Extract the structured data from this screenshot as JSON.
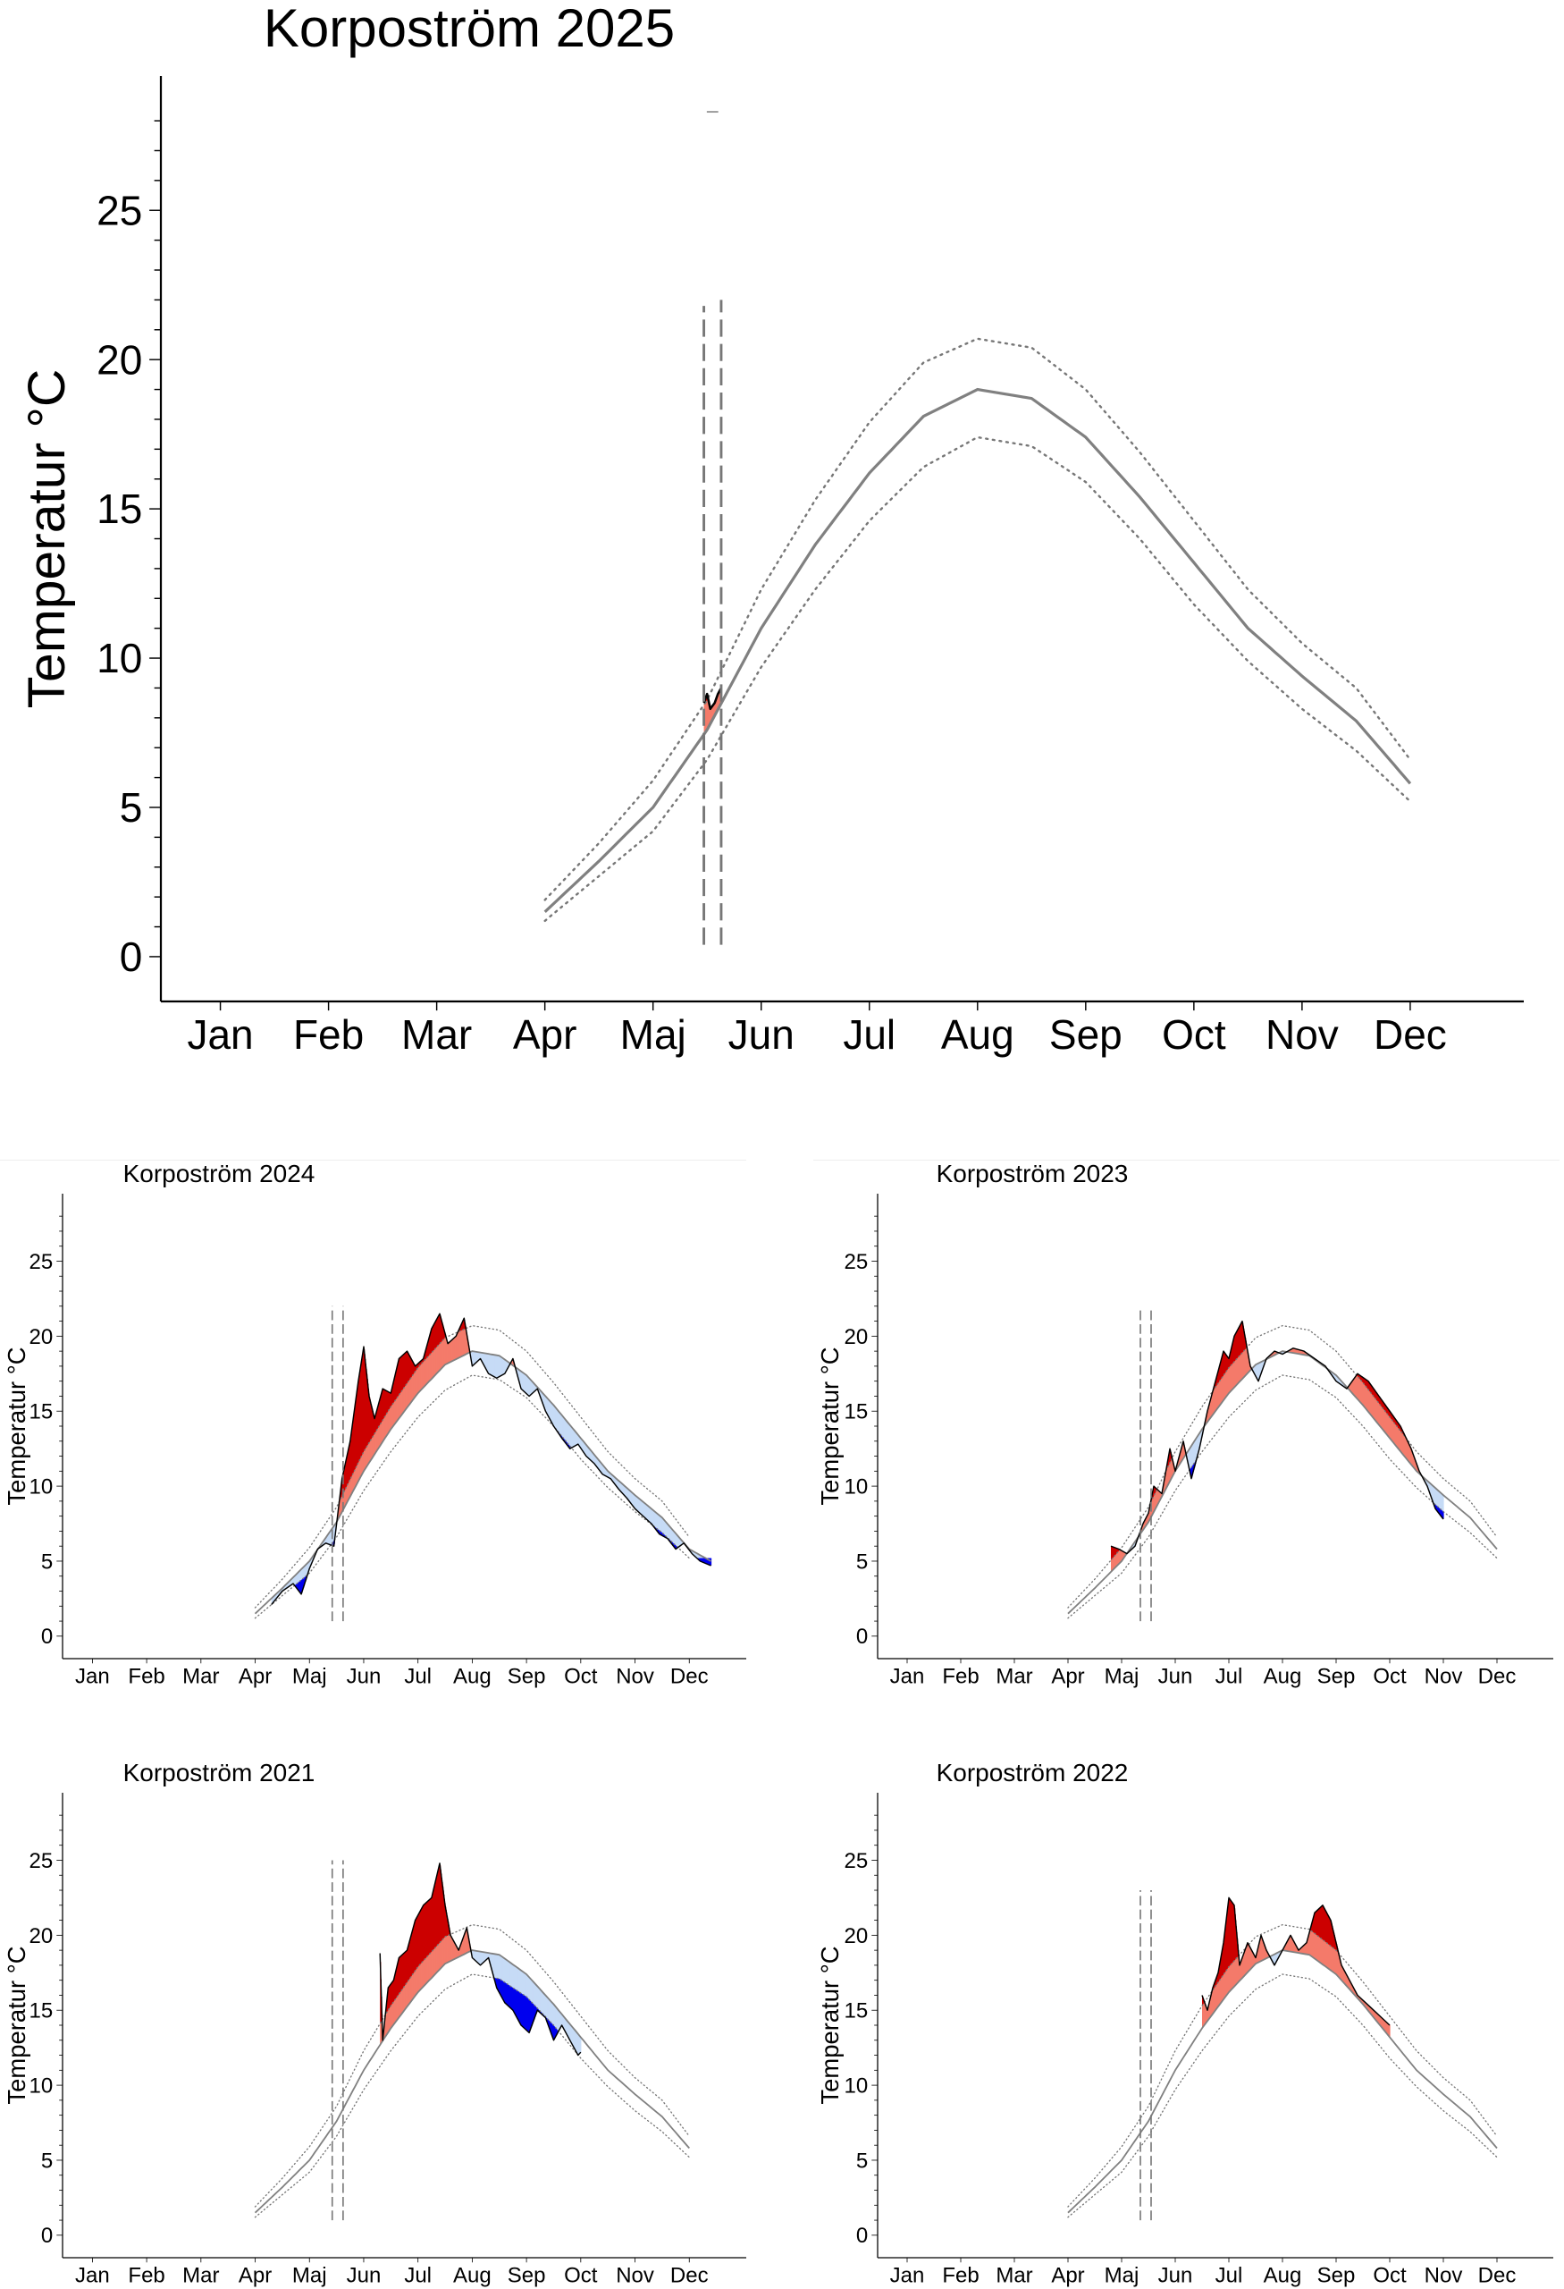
{
  "months": [
    "Jan",
    "Feb",
    "Mar",
    "Apr",
    "Maj",
    "Jun",
    "Jul",
    "Aug",
    "Sep",
    "Oct",
    "Nov",
    "Dec"
  ],
  "yticks": [
    0,
    5,
    10,
    15,
    20,
    25
  ],
  "colors": {
    "warm_strong": "#cc0000",
    "warm": "#f47b6a",
    "cold": "#c6dbf6",
    "cold_strong": "#0000ee",
    "mean": "#808080"
  },
  "chart_data": [
    {
      "type": "line",
      "title": "Korpoström 2025",
      "ylabel": "Temperatur °C",
      "ylim": [
        -1.5,
        29.5
      ],
      "x_unit": "month (1=Jan)",
      "climate_mean": {
        "x": [
          4.0,
          4.5,
          5.0,
          5.5,
          6.0,
          6.5,
          7.0,
          7.5,
          8.0,
          8.5,
          9.0,
          9.5,
          10.0,
          10.5,
          11.0,
          11.5,
          12.0
        ],
        "y": [
          1.5,
          3.2,
          5.0,
          7.6,
          11.0,
          13.8,
          16.2,
          18.1,
          19.0,
          18.7,
          17.4,
          15.4,
          13.2,
          11.0,
          9.4,
          7.9,
          5.8
        ]
      },
      "upper_band": {
        "x": [
          4.0,
          4.5,
          5.0,
          5.5,
          6.0,
          6.5,
          7.0,
          7.5,
          8.0,
          8.5,
          9.0,
          9.5,
          10.0,
          10.5,
          11.0,
          11.5,
          12.0
        ],
        "y": [
          1.9,
          3.8,
          5.9,
          8.6,
          12.3,
          15.3,
          17.9,
          19.9,
          20.7,
          20.4,
          19.0,
          16.9,
          14.6,
          12.3,
          10.5,
          9.0,
          6.6
        ]
      },
      "lower_band": {
        "x": [
          4.0,
          4.5,
          5.0,
          5.5,
          6.0,
          6.5,
          7.0,
          7.5,
          8.0,
          8.5,
          9.0,
          9.5,
          10.0,
          10.5,
          11.0,
          11.5,
          12.0
        ],
        "y": [
          1.2,
          2.7,
          4.2,
          6.6,
          9.7,
          12.3,
          14.6,
          16.4,
          17.4,
          17.1,
          15.9,
          14.0,
          11.8,
          9.9,
          8.3,
          6.9,
          5.2
        ]
      },
      "observed": {
        "x": [
          5.47,
          5.5,
          5.53,
          5.57,
          5.6,
          5.63
        ],
        "y": [
          8.5,
          8.8,
          8.3,
          8.5,
          8.8,
          9.0
        ]
      },
      "vlines": [
        5.47,
        5.63
      ],
      "vline_extent": [
        [
          0.4,
          21.8
        ],
        [
          0.4,
          22.0
        ]
      ],
      "stray_marks": [
        [
          5.55,
          28.3
        ]
      ]
    },
    {
      "type": "line",
      "title": "Korpoström 2024",
      "ylabel": "Temperatur °C",
      "ylim": [
        -1.5,
        29.5
      ],
      "climate_mean": {
        "x": [
          4.0,
          4.5,
          5.0,
          5.5,
          6.0,
          6.5,
          7.0,
          7.5,
          8.0,
          8.5,
          9.0,
          9.5,
          10.0,
          10.5,
          11.0,
          11.5,
          12.0,
          12.4
        ],
        "y": [
          1.5,
          3.2,
          5.0,
          7.6,
          11.0,
          13.8,
          16.2,
          18.1,
          19.0,
          18.7,
          17.4,
          15.4,
          13.2,
          11.0,
          9.4,
          7.9,
          5.8,
          5.0
        ]
      },
      "upper_band": {
        "x": [
          4.0,
          4.5,
          5.0,
          5.5,
          6.0,
          6.5,
          7.0,
          7.5,
          8.0,
          8.5,
          9.0,
          9.5,
          10.0,
          10.5,
          11.0,
          11.5,
          12.0
        ],
        "y": [
          1.9,
          3.8,
          5.9,
          8.6,
          12.3,
          15.3,
          17.9,
          19.9,
          20.7,
          20.4,
          19.0,
          16.9,
          14.6,
          12.3,
          10.5,
          9.0,
          6.6
        ]
      },
      "lower_band": {
        "x": [
          4.0,
          4.5,
          5.0,
          5.5,
          6.0,
          6.5,
          7.0,
          7.5,
          8.0,
          8.5,
          9.0,
          9.5,
          10.0,
          10.5,
          11.0,
          11.5,
          12.0
        ],
        "y": [
          1.2,
          2.7,
          4.2,
          6.6,
          9.7,
          12.3,
          14.6,
          16.4,
          17.4,
          17.1,
          15.9,
          14.0,
          11.8,
          9.9,
          8.3,
          6.9,
          5.2
        ]
      },
      "observed": {
        "x": [
          4.3,
          4.5,
          4.7,
          4.85,
          5.0,
          5.15,
          5.3,
          5.45,
          5.6,
          5.75,
          5.9,
          6.0,
          6.1,
          6.2,
          6.35,
          6.5,
          6.65,
          6.8,
          6.95,
          7.1,
          7.25,
          7.4,
          7.55,
          7.7,
          7.85,
          8.0,
          8.15,
          8.3,
          8.45,
          8.6,
          8.75,
          8.9,
          9.05,
          9.2,
          9.35,
          9.5,
          9.65,
          9.8,
          9.95,
          10.1,
          10.25,
          10.4,
          10.55,
          10.7,
          10.85,
          11.0,
          11.15,
          11.3,
          11.45,
          11.6,
          11.75,
          11.9,
          12.05,
          12.2,
          12.4
        ],
        "y": [
          2.1,
          3.0,
          3.5,
          2.8,
          4.5,
          5.8,
          6.2,
          6.0,
          10.5,
          13.0,
          17.0,
          19.3,
          16.0,
          14.5,
          16.5,
          16.2,
          18.5,
          19.0,
          18.0,
          18.5,
          20.5,
          21.5,
          19.5,
          20.0,
          21.2,
          18.0,
          18.5,
          17.5,
          17.2,
          17.5,
          18.5,
          16.5,
          16.0,
          16.5,
          15.0,
          14.0,
          13.2,
          12.5,
          12.8,
          12.0,
          11.5,
          10.8,
          10.5,
          9.8,
          9.2,
          8.5,
          8.0,
          7.5,
          6.8,
          6.5,
          5.8,
          6.2,
          5.5,
          5.0,
          4.7
        ]
      },
      "vlines": [
        5.42,
        5.62
      ],
      "vline_extent": [
        [
          1.0,
          22.0
        ],
        [
          1.0,
          22.0
        ]
      ]
    },
    {
      "type": "line",
      "title": "Korpoström 2023",
      "ylabel": "Temperatur °C",
      "ylim": [
        -1.5,
        29.5
      ],
      "climate_mean": {
        "x": [
          4.0,
          4.5,
          5.0,
          5.5,
          6.0,
          6.5,
          7.0,
          7.5,
          8.0,
          8.5,
          9.0,
          9.5,
          10.0,
          10.5,
          11.0,
          11.5,
          12.0
        ],
        "y": [
          1.5,
          3.2,
          5.0,
          7.6,
          11.0,
          13.8,
          16.2,
          18.1,
          19.0,
          18.7,
          17.4,
          15.4,
          13.2,
          11.0,
          9.4,
          7.9,
          5.8
        ]
      },
      "upper_band": {
        "x": [
          4.0,
          4.5,
          5.0,
          5.5,
          6.0,
          6.5,
          7.0,
          7.5,
          8.0,
          8.5,
          9.0,
          9.5,
          10.0,
          10.5,
          11.0,
          11.5,
          12.0
        ],
        "y": [
          1.9,
          3.8,
          5.9,
          8.6,
          12.3,
          15.3,
          17.9,
          19.9,
          20.7,
          20.4,
          19.0,
          16.9,
          14.6,
          12.3,
          10.5,
          9.0,
          6.6
        ]
      },
      "lower_band": {
        "x": [
          4.0,
          4.5,
          5.0,
          5.5,
          6.0,
          6.5,
          7.0,
          7.5,
          8.0,
          8.5,
          9.0,
          9.5,
          10.0,
          10.5,
          11.0,
          11.5,
          12.0
        ],
        "y": [
          1.2,
          2.7,
          4.2,
          6.6,
          9.7,
          12.3,
          14.6,
          16.4,
          17.4,
          17.1,
          15.9,
          14.0,
          11.8,
          9.9,
          8.3,
          6.9,
          5.2
        ]
      },
      "observed": {
        "x": [
          4.8,
          4.95,
          5.1,
          5.25,
          5.4,
          5.5,
          5.6,
          5.75,
          5.9,
          6.0,
          6.15,
          6.3,
          6.45,
          6.6,
          6.75,
          6.9,
          7.0,
          7.1,
          7.25,
          7.4,
          7.55,
          7.7,
          7.85,
          8.0,
          8.2,
          8.4,
          8.6,
          8.8,
          9.0,
          9.2,
          9.4,
          9.6,
          9.8,
          10.0,
          10.2,
          10.4,
          10.55,
          10.7,
          10.85,
          11.0
        ],
        "y": [
          6.0,
          5.8,
          5.5,
          6.0,
          7.5,
          8.2,
          10.0,
          9.5,
          12.5,
          11.0,
          13.0,
          10.5,
          12.5,
          15.0,
          17.0,
          19.0,
          18.5,
          20.0,
          21.0,
          18.0,
          17.0,
          18.5,
          19.0,
          18.8,
          19.2,
          19.0,
          18.5,
          18.0,
          17.0,
          16.5,
          17.5,
          17.0,
          16.0,
          15.0,
          14.0,
          12.5,
          11.0,
          10.0,
          8.5,
          7.8
        ]
      },
      "vlines": [
        5.35,
        5.55
      ],
      "vline_extent": [
        [
          1.0,
          21.8
        ],
        [
          1.0,
          21.8
        ]
      ]
    },
    {
      "type": "line",
      "title": "Korpoström 2021",
      "ylabel": "Temperatur °C",
      "ylim": [
        -1.5,
        29.5
      ],
      "climate_mean": {
        "x": [
          4.0,
          4.5,
          5.0,
          5.5,
          6.0,
          6.5,
          7.0,
          7.5,
          8.0,
          8.5,
          9.0,
          9.5,
          10.0,
          10.5,
          11.0,
          11.5,
          12.0
        ],
        "y": [
          1.5,
          3.2,
          5.0,
          7.6,
          11.0,
          13.8,
          16.2,
          18.1,
          19.0,
          18.7,
          17.4,
          15.4,
          13.2,
          11.0,
          9.4,
          7.9,
          5.8
        ]
      },
      "upper_band": {
        "x": [
          4.0,
          4.5,
          5.0,
          5.5,
          6.0,
          6.5,
          7.0,
          7.5,
          8.0,
          8.5,
          9.0,
          9.5,
          10.0,
          10.5,
          11.0,
          11.5,
          12.0
        ],
        "y": [
          1.9,
          3.8,
          5.9,
          8.6,
          12.3,
          15.3,
          17.9,
          19.9,
          20.7,
          20.4,
          19.0,
          16.9,
          14.6,
          12.3,
          10.5,
          9.0,
          6.6
        ]
      },
      "lower_band": {
        "x": [
          4.0,
          4.5,
          5.0,
          5.5,
          6.0,
          6.5,
          7.0,
          7.5,
          8.0,
          8.5,
          9.0,
          9.5,
          10.0,
          10.5,
          11.0,
          11.5,
          12.0
        ],
        "y": [
          1.2,
          2.7,
          4.2,
          6.6,
          9.7,
          12.3,
          14.6,
          16.4,
          17.4,
          17.1,
          15.9,
          14.0,
          11.8,
          9.9,
          8.3,
          6.9,
          5.2
        ]
      },
      "observed": {
        "x": [
          6.3,
          6.35,
          6.45,
          6.55,
          6.65,
          6.8,
          6.95,
          7.1,
          7.25,
          7.4,
          7.5,
          7.6,
          7.75,
          7.9,
          8.0,
          8.15,
          8.3,
          8.45,
          8.6,
          8.75,
          8.9,
          9.05,
          9.2,
          9.35,
          9.5,
          9.65,
          9.8,
          9.95,
          10.0
        ],
        "y": [
          18.8,
          13.0,
          16.5,
          17.0,
          18.5,
          19.0,
          21.0,
          22.0,
          22.5,
          24.8,
          22.0,
          20.0,
          19.0,
          20.5,
          18.5,
          18.0,
          18.5,
          16.5,
          15.5,
          15.0,
          14.0,
          13.5,
          15.0,
          14.5,
          13.0,
          14.0,
          13.0,
          12.0,
          12.2
        ]
      },
      "vlines": [
        5.42,
        5.62
      ],
      "vline_extent": [
        [
          1.0,
          25.0
        ],
        [
          1.0,
          25.0
        ]
      ]
    },
    {
      "type": "line",
      "title": "Korpoström 2022",
      "ylabel": "Temperatur °C",
      "ylim": [
        -1.5,
        29.5
      ],
      "climate_mean": {
        "x": [
          4.0,
          4.5,
          5.0,
          5.5,
          6.0,
          6.5,
          7.0,
          7.5,
          8.0,
          8.5,
          9.0,
          9.5,
          10.0,
          10.5,
          11.0,
          11.5,
          12.0
        ],
        "y": [
          1.5,
          3.2,
          5.0,
          7.6,
          11.0,
          13.8,
          16.2,
          18.1,
          19.0,
          18.7,
          17.4,
          15.4,
          13.2,
          11.0,
          9.4,
          7.9,
          5.8
        ]
      },
      "upper_band": {
        "x": [
          4.0,
          4.5,
          5.0,
          5.5,
          6.0,
          6.5,
          7.0,
          7.5,
          8.0,
          8.5,
          9.0,
          9.5,
          10.0,
          10.5,
          11.0,
          11.5,
          12.0
        ],
        "y": [
          1.9,
          3.8,
          5.9,
          8.6,
          12.3,
          15.3,
          17.9,
          19.9,
          20.7,
          20.4,
          19.0,
          16.9,
          14.6,
          12.3,
          10.5,
          9.0,
          6.6
        ]
      },
      "lower_band": {
        "x": [
          4.0,
          4.5,
          5.0,
          5.5,
          6.0,
          6.5,
          7.0,
          7.5,
          8.0,
          8.5,
          9.0,
          9.5,
          10.0,
          10.5,
          11.0,
          11.5,
          12.0
        ],
        "y": [
          1.2,
          2.7,
          4.2,
          6.6,
          9.7,
          12.3,
          14.6,
          16.4,
          17.4,
          17.1,
          15.9,
          14.0,
          11.8,
          9.9,
          8.3,
          6.9,
          5.2
        ]
      },
      "observed": {
        "x": [
          6.5,
          6.6,
          6.7,
          6.8,
          6.9,
          7.0,
          7.1,
          7.2,
          7.35,
          7.5,
          7.6,
          7.7,
          7.85,
          8.0,
          8.15,
          8.3,
          8.45,
          8.6,
          8.75,
          8.9,
          9.0,
          9.1,
          9.25,
          9.4,
          9.55,
          9.7,
          9.85,
          10.0
        ],
        "y": [
          16.0,
          15.0,
          16.5,
          17.5,
          19.5,
          22.5,
          22.0,
          18.0,
          19.5,
          18.5,
          20.0,
          19.0,
          18.0,
          19.0,
          20.0,
          19.0,
          19.5,
          21.5,
          22.0,
          21.0,
          19.5,
          18.0,
          17.0,
          16.0,
          15.5,
          15.0,
          14.5,
          14.0
        ]
      },
      "vlines": [
        5.35,
        5.55
      ],
      "vline_extent": [
        [
          1.0,
          23.0
        ],
        [
          1.0,
          23.0
        ]
      ]
    }
  ]
}
